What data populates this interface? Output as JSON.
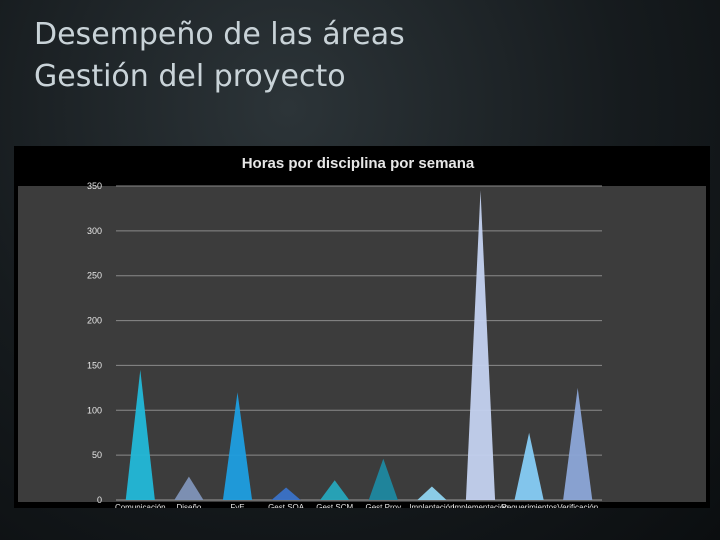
{
  "slide": {
    "title_line1": "Desempeño de las áreas",
    "title_line2": "Gestión del proyecto"
  },
  "chart_data": {
    "type": "area",
    "title": "Horas por disciplina por semana",
    "xlabel": "",
    "ylabel": "",
    "ylim": [
      0,
      350
    ],
    "yticks": [
      0,
      50,
      100,
      150,
      200,
      250,
      300,
      350
    ],
    "grid": true,
    "legend": "none",
    "categories": [
      "Comunicación",
      "Diseño",
      "FyE",
      "Gest.SQA",
      "Gest.SCM",
      "Gest.Proy",
      "Implantación",
      "Implementación",
      "Requerimientos",
      "Verificación"
    ],
    "category_labels": [
      "Comunicación",
      "Diseño",
      "FyE",
      "Gest.SQA",
      "Gest.SCM",
      "Gest.Proy",
      "Implantación",
      "Implementación",
      "Requerimientos",
      "Verificación"
    ],
    "values": [
      145,
      26,
      120,
      14,
      22,
      46,
      15,
      345,
      75,
      125
    ],
    "colors": [
      "#22b8d8",
      "#7f93b8",
      "#1e9ee0",
      "#3a72c8",
      "#26a6bc",
      "#1e88a0",
      "#8fd4f0",
      "#c4d2f0",
      "#86ccf5",
      "#8ca6d8"
    ]
  }
}
